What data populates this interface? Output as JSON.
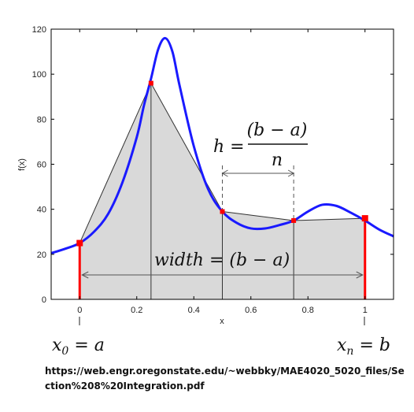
{
  "chart_data": {
    "type": "area",
    "xlabel": "x",
    "ylabel": "f(x)",
    "xlim": [
      -0.1,
      1.1
    ],
    "ylim": [
      0,
      120
    ],
    "x_ticks": [
      0,
      0.2,
      0.4,
      0.6,
      0.8,
      1
    ],
    "x_tick_labels": [
      "0",
      "0.2",
      "0.4",
      "0.6",
      "0.8",
      "1"
    ],
    "y_ticks": [
      0,
      20,
      40,
      60,
      80,
      100,
      120
    ],
    "y_tick_labels": [
      "0",
      "20",
      "40",
      "60",
      "80",
      "100",
      "120"
    ],
    "curve": {
      "color": "#1a1aff",
      "x": [
        -0.1,
        -0.05,
        0.0,
        0.05,
        0.1,
        0.15,
        0.2,
        0.225,
        0.25,
        0.275,
        0.3,
        0.325,
        0.35,
        0.4,
        0.45,
        0.5,
        0.55,
        0.6,
        0.65,
        0.7,
        0.75,
        0.8,
        0.85,
        0.9,
        0.95,
        1.0,
        1.05,
        1.1
      ],
      "y": [
        20.5,
        22.5,
        25,
        30,
        38,
        52,
        72,
        86,
        98,
        111,
        116,
        110,
        95,
        68,
        49,
        39,
        34,
        31.5,
        31.5,
        33,
        35,
        39,
        42,
        41.5,
        38.5,
        35,
        31,
        28
      ]
    },
    "trapezoid_nodes": {
      "color": "#ff0000",
      "x": [
        0,
        0.25,
        0.5,
        0.75,
        1
      ],
      "y": [
        25,
        96,
        39,
        35,
        36
      ]
    },
    "annotations": {
      "h_lhs": "h =",
      "h_num": "(b − a)",
      "h_den": "n",
      "width": "width = (b − a)",
      "x0": "x",
      "x0_sub": "0",
      "x0_rhs": " = a",
      "xn": "x",
      "xn_sub": "n",
      "xn_rhs": " = b"
    }
  },
  "source_url": "https://web.engr.oregonstate.edu/~webbky/MAE4020_5020_files/Section%208%20Integration.pdf"
}
